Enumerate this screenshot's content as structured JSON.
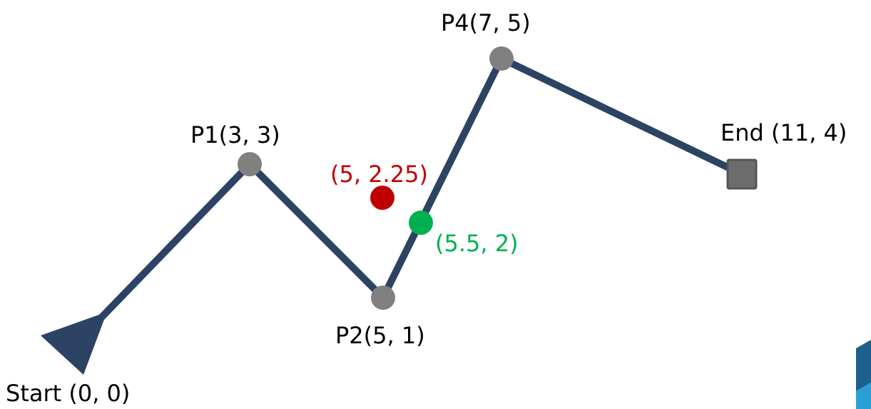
{
  "colors": {
    "path": "#2c4364",
    "waypoint": "#808080",
    "end_marker": "#6d6d6d",
    "label_text": "#000000",
    "red_point": "#c00000",
    "green_point": "#00b050",
    "logo_dark": "#1f5f8b",
    "logo_light": "#2a9fd6"
  },
  "points": {
    "start": {
      "label": "Start (0, 0)"
    },
    "p1": {
      "label": "P1(3, 3)"
    },
    "p2": {
      "label": "P2(5, 1)"
    },
    "p4": {
      "label": "P4(7, 5)"
    },
    "end": {
      "label": "End (11, 4)"
    }
  },
  "red_point": {
    "label": "(5, 2.25)"
  },
  "green_point": {
    "label": "(5.5, 2)"
  },
  "icons": {
    "start_marker": "triangle-arrow-icon",
    "end_marker": "square-icon",
    "corner_logo": "hexagon-logo-icon"
  }
}
